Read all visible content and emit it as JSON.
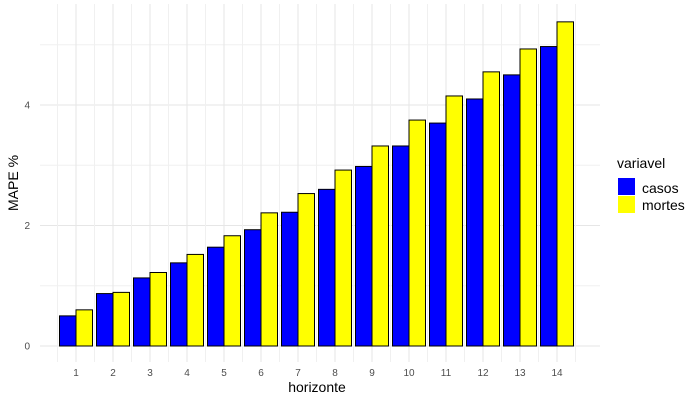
{
  "chart_data": {
    "type": "bar",
    "categories": [
      "1",
      "2",
      "3",
      "4",
      "5",
      "6",
      "7",
      "8",
      "9",
      "10",
      "11",
      "12",
      "13",
      "14"
    ],
    "series": [
      {
        "name": "casos",
        "color": "#0000ff",
        "values": [
          0.5,
          0.87,
          1.13,
          1.38,
          1.64,
          1.93,
          2.22,
          2.6,
          2.98,
          3.32,
          3.7,
          4.1,
          4.5,
          4.97
        ]
      },
      {
        "name": "mortes",
        "color": "#ffff00",
        "values": [
          0.6,
          0.89,
          1.22,
          1.52,
          1.83,
          2.21,
          2.53,
          2.92,
          3.32,
          3.75,
          4.15,
          4.55,
          4.93,
          5.38
        ]
      }
    ],
    "xlabel": "horizonte",
    "ylabel": "MAPE %",
    "ylim": [
      0,
      5.65
    ],
    "yticks": [
      0,
      2,
      4
    ],
    "grid": true,
    "legend": {
      "title": "variavel",
      "position": "right"
    }
  }
}
